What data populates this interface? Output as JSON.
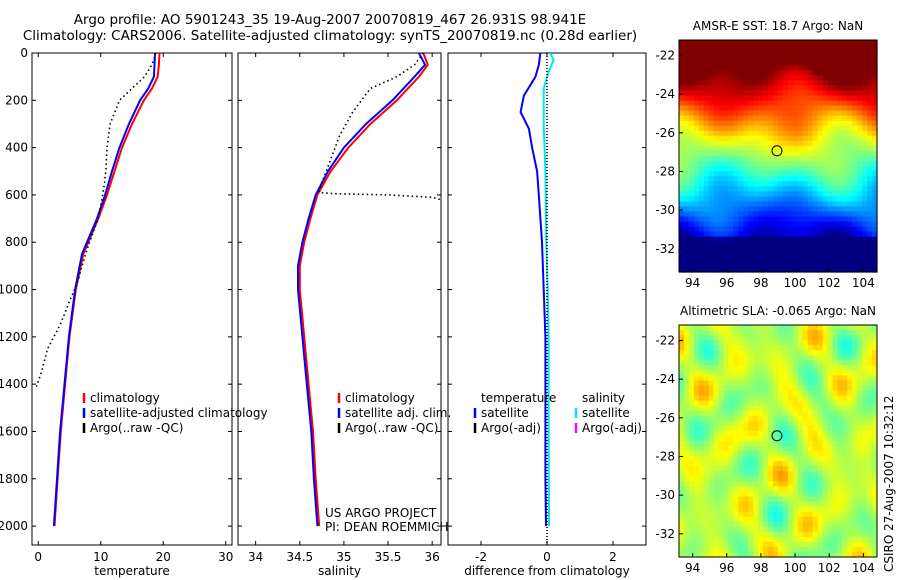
{
  "header": {
    "line1": "Argo profile: AO 5901243_35 19-Aug-2007 20070819_467 26.931S 98.941E",
    "line2": "Climatology: CARS2006. Satellite-adjusted climatology: synTS_20070819.nc (0.28d earlier)"
  },
  "colors": {
    "climatology": "#ff0000",
    "satellite": "#0000ff",
    "argo": "#000000",
    "salinity_sat": "#00e5ee",
    "salinity_argo": "#ff00ff"
  },
  "chart_data": [
    {
      "type": "line",
      "name": "temperature-profile",
      "xlabel": "temperature",
      "ylabel": "",
      "xlim": [
        -1,
        31
      ],
      "ylim": [
        2080,
        0
      ],
      "xticks": [
        0,
        10,
        20,
        30
      ],
      "yticks": [
        0,
        200,
        400,
        600,
        800,
        1000,
        1200,
        1400,
        1600,
        1800,
        2000
      ],
      "legend": [
        "climatology",
        "satellite-adjusted climatology",
        "Argo(..raw -QC)"
      ],
      "series": [
        {
          "name": "climatology",
          "style": "solid",
          "color": "#ff0000",
          "points": [
            [
              19.4,
              0
            ],
            [
              19.3,
              50
            ],
            [
              19.1,
              100
            ],
            [
              18.2,
              150
            ],
            [
              16.9,
              200
            ],
            [
              15.0,
              300
            ],
            [
              13.4,
              400
            ],
            [
              12.2,
              500
            ],
            [
              11.0,
              600
            ],
            [
              9.6,
              700
            ],
            [
              8.0,
              800
            ],
            [
              7.2,
              850
            ],
            [
              6.0,
              1000
            ],
            [
              5.0,
              1200
            ],
            [
              4.3,
              1400
            ],
            [
              3.6,
              1600
            ],
            [
              3.1,
              1800
            ],
            [
              2.6,
              2000
            ]
          ]
        },
        {
          "name": "satellite-adjusted climatology",
          "style": "solid",
          "color": "#0000ff",
          "points": [
            [
              18.7,
              0
            ],
            [
              18.6,
              50
            ],
            [
              18.5,
              100
            ],
            [
              17.6,
              150
            ],
            [
              16.3,
              200
            ],
            [
              14.5,
              300
            ],
            [
              13.0,
              400
            ],
            [
              11.8,
              500
            ],
            [
              10.7,
              600
            ],
            [
              9.4,
              700
            ],
            [
              7.8,
              800
            ],
            [
              7.0,
              850
            ],
            [
              5.9,
              1000
            ],
            [
              4.9,
              1200
            ],
            [
              4.2,
              1400
            ],
            [
              3.5,
              1600
            ],
            [
              3.0,
              1800
            ],
            [
              2.5,
              2000
            ]
          ]
        },
        {
          "name": "Argo(..raw -QC)",
          "style": "dotted",
          "color": "#000000",
          "points": [
            [
              18.8,
              0
            ],
            [
              18.2,
              50
            ],
            [
              17.0,
              100
            ],
            [
              15.0,
              150
            ],
            [
              13.0,
              200
            ],
            [
              11.5,
              300
            ],
            [
              11.0,
              400
            ],
            [
              10.8,
              500
            ],
            [
              10.6,
              550
            ],
            [
              10.3,
              600
            ],
            [
              9.6,
              700
            ],
            [
              8.2,
              800
            ],
            [
              7.0,
              900
            ],
            [
              6.5,
              950
            ],
            [
              5.8,
              1000
            ],
            [
              5.0,
              1050
            ],
            [
              3.5,
              1150
            ],
            [
              1.5,
              1250
            ],
            [
              0.5,
              1350
            ],
            [
              -0.3,
              1410
            ]
          ]
        }
      ]
    },
    {
      "type": "line",
      "name": "salinity-profile",
      "xlabel": "salinity",
      "ylabel": "",
      "xlim": [
        33.8,
        36.1
      ],
      "ylim": [
        2080,
        0
      ],
      "xticks": [
        34,
        34.5,
        35,
        35.5,
        36
      ],
      "xtick_labels": [
        "34",
        "34.5",
        "35",
        "35.5",
        "36"
      ],
      "legend": [
        "climatology",
        "satellite adj. clim.",
        "Argo(..raw -QC)"
      ],
      "series": [
        {
          "name": "climatology",
          "style": "solid",
          "color": "#ff0000",
          "points": [
            [
              35.9,
              0
            ],
            [
              35.95,
              50
            ],
            [
              35.85,
              100
            ],
            [
              35.6,
              200
            ],
            [
              35.3,
              300
            ],
            [
              35.05,
              400
            ],
            [
              34.85,
              500
            ],
            [
              34.7,
              600
            ],
            [
              34.62,
              700
            ],
            [
              34.55,
              800
            ],
            [
              34.5,
              900
            ],
            [
              34.5,
              1000
            ],
            [
              34.55,
              1200
            ],
            [
              34.6,
              1400
            ],
            [
              34.65,
              1600
            ],
            [
              34.68,
              1800
            ],
            [
              34.72,
              2000
            ]
          ]
        },
        {
          "name": "satellite adj. clim.",
          "style": "solid",
          "color": "#0000ff",
          "points": [
            [
              35.85,
              0
            ],
            [
              35.92,
              50
            ],
            [
              35.8,
              100
            ],
            [
              35.55,
              200
            ],
            [
              35.25,
              300
            ],
            [
              35.0,
              400
            ],
            [
              34.82,
              500
            ],
            [
              34.68,
              600
            ],
            [
              34.6,
              700
            ],
            [
              34.53,
              800
            ],
            [
              34.48,
              900
            ],
            [
              34.48,
              1000
            ],
            [
              34.53,
              1200
            ],
            [
              34.58,
              1400
            ],
            [
              34.63,
              1600
            ],
            [
              34.66,
              1800
            ],
            [
              34.7,
              2000
            ]
          ]
        },
        {
          "name": "Argo(..raw -QC)",
          "style": "dotted",
          "color": "#000000",
          "points": [
            [
              35.9,
              0
            ],
            [
              35.8,
              50
            ],
            [
              35.6,
              100
            ],
            [
              35.3,
              150
            ],
            [
              35.1,
              250
            ],
            [
              34.95,
              350
            ],
            [
              34.85,
              450
            ],
            [
              34.75,
              550
            ],
            [
              34.72,
              590
            ],
            [
              34.9,
              595
            ],
            [
              35.5,
              600
            ],
            [
              36.0,
              610
            ],
            [
              36.1,
              620
            ]
          ]
        }
      ]
    },
    {
      "type": "line",
      "name": "difference-profile",
      "xlabel": "difference from climatology",
      "ylabel": "",
      "xlim": [
        -3,
        3
      ],
      "ylim": [
        2080,
        0
      ],
      "xticks": [
        -2,
        0,
        2
      ],
      "xtick_labels": [
        "-2",
        "0",
        "2"
      ],
      "legend": [
        "temperature",
        "satellite",
        "Argo(-adj)",
        "salinity",
        "satellite",
        "Argo(-adj)"
      ],
      "series": [
        {
          "name": "temperature satellite",
          "style": "solid",
          "color": "#0000ff",
          "points": [
            [
              -0.2,
              0
            ],
            [
              -0.25,
              50
            ],
            [
              -0.35,
              100
            ],
            [
              -0.7,
              180
            ],
            [
              -0.8,
              250
            ],
            [
              -0.55,
              320
            ],
            [
              -0.45,
              400
            ],
            [
              -0.3,
              500
            ],
            [
              -0.25,
              600
            ],
            [
              -0.2,
              700
            ],
            [
              -0.15,
              800
            ],
            [
              -0.1,
              1000
            ],
            [
              -0.05,
              1200
            ],
            [
              -0.05,
              1500
            ],
            [
              -0.05,
              1800
            ],
            [
              -0.03,
              2000
            ]
          ]
        },
        {
          "name": "salinity satellite",
          "style": "solid",
          "color": "#00e5ee",
          "points": [
            [
              0.1,
              0
            ],
            [
              0.2,
              30
            ],
            [
              0.05,
              80
            ],
            [
              -0.1,
              150
            ],
            [
              -0.1,
              300
            ],
            [
              -0.05,
              500
            ],
            [
              -0.02,
              800
            ],
            [
              0.02,
              1000
            ],
            [
              0.05,
              1200
            ],
            [
              0.05,
              1600
            ],
            [
              0.06,
              2000
            ]
          ]
        },
        {
          "name": "zero reference",
          "style": "dotted",
          "color": "#000000",
          "points": [
            [
              0,
              0
            ],
            [
              0,
              2080
            ]
          ]
        }
      ]
    },
    {
      "type": "heatmap",
      "name": "sst-map",
      "title": "AMSR-E SST: 18.7 Argo: NaN",
      "xlim": [
        93.2,
        104.8
      ],
      "ylim": [
        -33.2,
        -21.2
      ],
      "xticks": [
        94,
        96,
        98,
        100,
        102,
        104
      ],
      "yticks": [
        -22,
        -24,
        -26,
        -28,
        -30,
        -32
      ],
      "marker": {
        "lon": 98.94,
        "lat": -26.93
      }
    },
    {
      "type": "heatmap",
      "name": "sla-map",
      "title": "Altimetric SLA: -0.065 Argo: NaN",
      "xlim": [
        93.2,
        104.8
      ],
      "ylim": [
        -33.2,
        -21.2
      ],
      "xticks": [
        94,
        96,
        98,
        100,
        102,
        104
      ],
      "yticks": [
        -22,
        -24,
        -26,
        -28,
        -30,
        -32
      ],
      "marker": {
        "lon": 98.94,
        "lat": -26.93
      }
    }
  ],
  "annotations": {
    "project": "US ARGO PROJECT",
    "pi": "PI: DEAN ROEMMICH",
    "credit": "CSIRO 27-Aug-2007 10:32:12",
    "temp_legend_header": "temperature",
    "sal_legend_header": "salinity"
  }
}
